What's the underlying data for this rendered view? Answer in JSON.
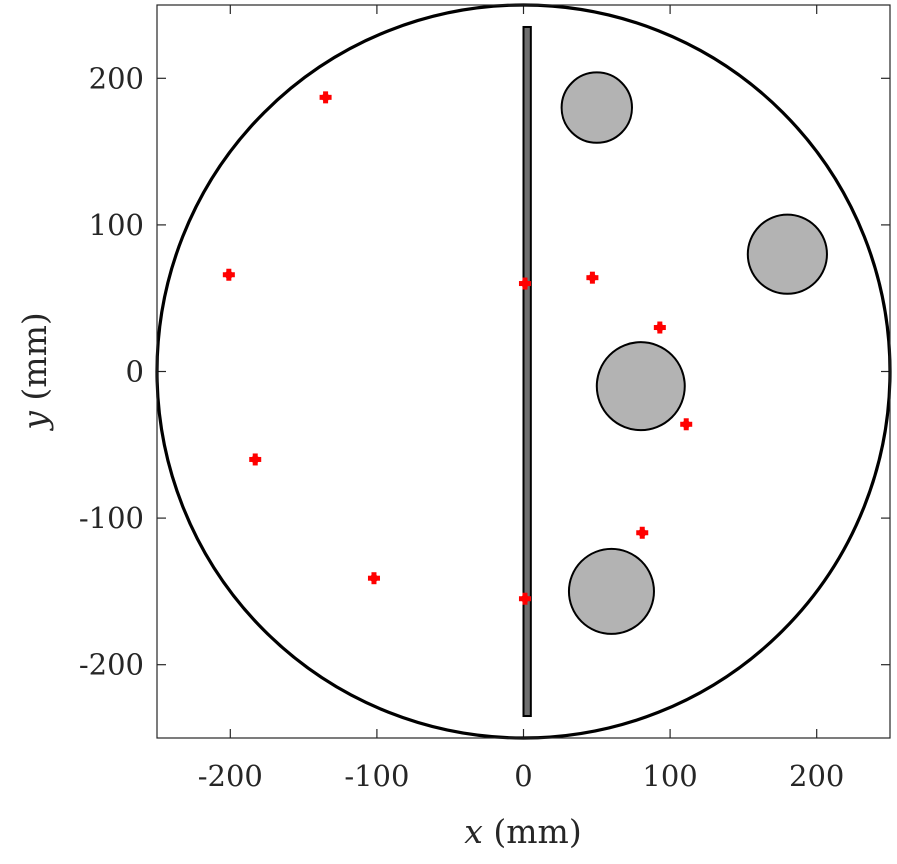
{
  "chart_data": {
    "type": "scatter",
    "title": "",
    "xlabel_var": "x",
    "xlabel_unit": " (mm)",
    "ylabel_var": "y",
    "ylabel_unit": " (mm)",
    "xlim": [
      -250,
      250
    ],
    "ylim": [
      -250,
      250
    ],
    "xticks": [
      -200,
      -100,
      0,
      100,
      200
    ],
    "yticks": [
      -200,
      -100,
      0,
      100,
      200
    ],
    "xtick_labels": [
      "-200",
      "-100",
      "0",
      "100",
      "200"
    ],
    "ytick_labels": [
      "-200",
      "-100",
      "0",
      "100",
      "200"
    ],
    "grid": false,
    "box": true,
    "boundary_circle": {
      "cx": 0,
      "cy": 0,
      "r": 250,
      "color": "#000000"
    },
    "bar": {
      "x_min": 0,
      "x_max": 5,
      "y_min": -235,
      "y_max": 235,
      "color": "#6e6e6e"
    },
    "obstacles": [
      {
        "cx": 50,
        "cy": 180,
        "r": 24
      },
      {
        "cx": 180,
        "cy": 80,
        "r": 27
      },
      {
        "cx": 80,
        "cy": -10,
        "r": 30
      },
      {
        "cx": 60,
        "cy": -150,
        "r": 29
      }
    ],
    "obstacle_color": "#b3b3b3",
    "marker_color": "#ff0000",
    "points": [
      {
        "x": -135,
        "y": 187
      },
      {
        "x": -201,
        "y": 66
      },
      {
        "x": -183,
        "y": -60
      },
      {
        "x": -102,
        "y": -141
      },
      {
        "x": 1,
        "y": 60
      },
      {
        "x": 1,
        "y": -155
      },
      {
        "x": 47,
        "y": 64
      },
      {
        "x": 93,
        "y": 30
      },
      {
        "x": 111,
        "y": -36
      },
      {
        "x": 81,
        "y": -110
      }
    ]
  }
}
